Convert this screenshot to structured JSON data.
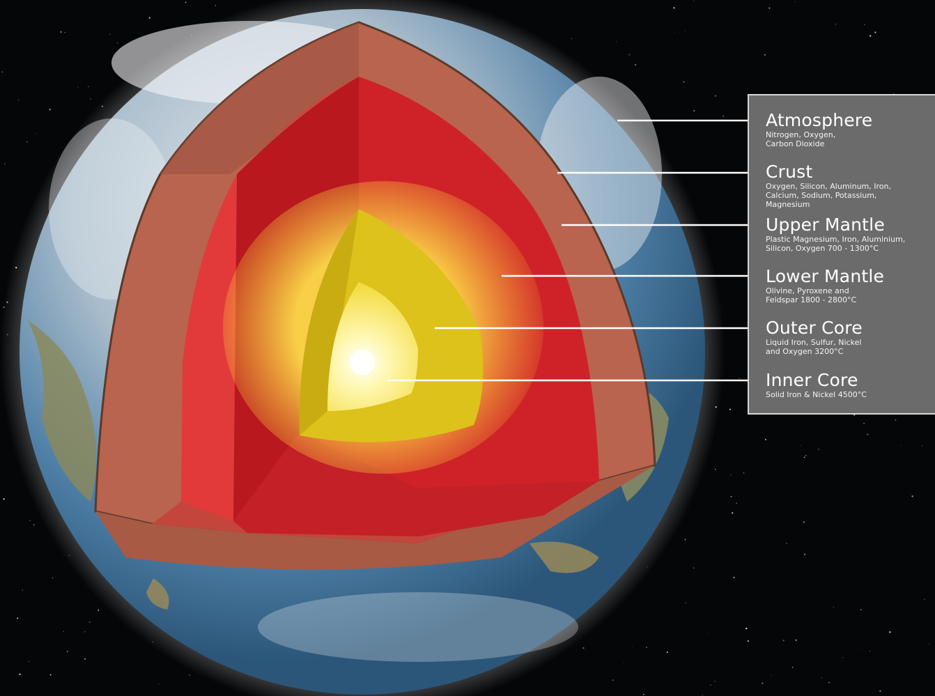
{
  "colors": {
    "space": "#050608",
    "ocean": "#3d6f98",
    "crust": "#b8644e",
    "upper_mantle": "#c3453c",
    "lower_mantle": "#d0252a",
    "outer_core": "#dcc21a",
    "inner_core": "#fff5a8",
    "panel": "#6b6b6b",
    "leader_line": "#ffffff"
  },
  "layers": [
    {
      "name": "Atmosphere",
      "description": "Nitrogen, Oxygen,\nCarbon Dioxide"
    },
    {
      "name": "Crust",
      "description": "Oxygen, Silicon, Aluminum, Iron,\nCalcium, Sodium, Potassium,\nMagnesium"
    },
    {
      "name": "Upper Mantle",
      "description": "Plastic Magnesium, Iron, Aluminium,\nSilicon, Oxygen 700 - 1300°C"
    },
    {
      "name": "Lower Mantle",
      "description": "Olivine, Pyroxene and\nFeldspar 1800 - 2800°C"
    },
    {
      "name": "Outer Core",
      "description": "Liquid Iron, Sulfur, Nickel\nand Oxygen 3200°C"
    },
    {
      "name": "Inner Core",
      "description": "Solid Iron & Nickel 4500°C"
    }
  ]
}
